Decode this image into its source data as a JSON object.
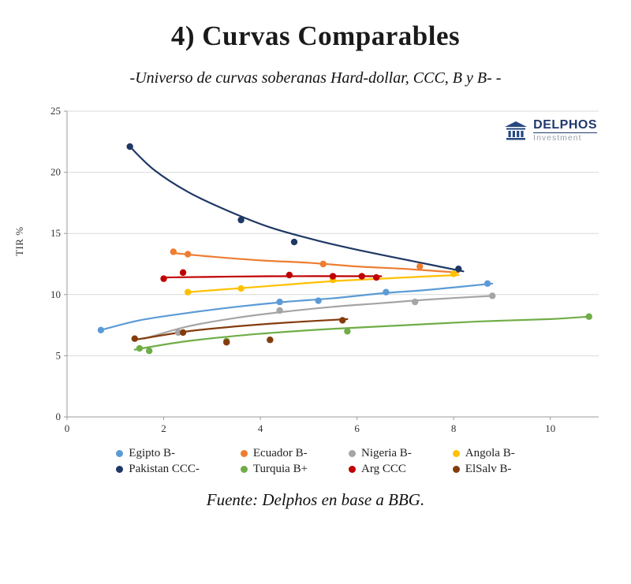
{
  "title": "4) Curvas Comparables",
  "subtitle": "-Universo de curvas soberanas Hard-dollar, CCC, B y B- -",
  "footer": "Fuente: Delphos en base a BBG.",
  "logo": {
    "name": "DELPHOS",
    "sub": "Investment",
    "color": "#1F3A6E"
  },
  "chart_data": {
    "type": "scatter",
    "title": "",
    "xlabel": "",
    "ylabel": "TIR %",
    "xlim": [
      0,
      11
    ],
    "ylim": [
      0,
      25
    ],
    "x_ticks": [
      0,
      2,
      4,
      6,
      8,
      10
    ],
    "y_ticks": [
      0,
      5,
      10,
      15,
      20,
      25
    ],
    "grid": "horizontal",
    "legend_position": "bottom",
    "series": [
      {
        "name": "Egipto B-",
        "color": "#5B9BD5",
        "points": [
          [
            0.7,
            7.1
          ],
          [
            4.4,
            9.4
          ],
          [
            5.2,
            9.5
          ],
          [
            6.6,
            10.2
          ],
          [
            8.7,
            10.9
          ]
        ],
        "curve": [
          [
            0.7,
            7.1
          ],
          [
            1.5,
            7.9
          ],
          [
            2.5,
            8.5
          ],
          [
            3.5,
            9.0
          ],
          [
            4.5,
            9.4
          ],
          [
            5.5,
            9.7
          ],
          [
            6.5,
            10.1
          ],
          [
            7.5,
            10.4
          ],
          [
            8.8,
            10.9
          ]
        ]
      },
      {
        "name": "Ecuador B-",
        "color": "#ED7D31",
        "points": [
          [
            2.2,
            13.5
          ],
          [
            2.5,
            13.3
          ],
          [
            5.3,
            12.5
          ],
          [
            7.3,
            12.3
          ]
        ],
        "curve": [
          [
            2.2,
            13.4
          ],
          [
            3.0,
            13.1
          ],
          [
            4.0,
            12.8
          ],
          [
            5.0,
            12.6
          ],
          [
            6.0,
            12.3
          ],
          [
            7.0,
            12.1
          ],
          [
            8.1,
            11.8
          ]
        ]
      },
      {
        "name": "Nigeria B-",
        "color": "#A5A5A5",
        "points": [
          [
            2.3,
            6.9
          ],
          [
            4.4,
            8.7
          ],
          [
            7.2,
            9.4
          ],
          [
            8.8,
            9.9
          ]
        ],
        "curve": [
          [
            1.6,
            6.4
          ],
          [
            2.5,
            7.4
          ],
          [
            3.5,
            8.1
          ],
          [
            4.5,
            8.6
          ],
          [
            5.5,
            9.0
          ],
          [
            6.5,
            9.3
          ],
          [
            7.5,
            9.6
          ],
          [
            8.8,
            9.9
          ]
        ]
      },
      {
        "name": "Angola B-",
        "color": "#FFC000",
        "points": [
          [
            2.5,
            10.2
          ],
          [
            3.6,
            10.5
          ],
          [
            5.5,
            11.2
          ],
          [
            8.0,
            11.7
          ]
        ],
        "curve": [
          [
            2.5,
            10.2
          ],
          [
            3.5,
            10.5
          ],
          [
            4.5,
            10.8
          ],
          [
            5.5,
            11.1
          ],
          [
            6.5,
            11.3
          ],
          [
            7.5,
            11.5
          ],
          [
            8.1,
            11.6
          ]
        ]
      },
      {
        "name": "Pakistan CCC-",
        "color": "#1F3864",
        "points": [
          [
            1.3,
            22.1
          ],
          [
            3.6,
            16.1
          ],
          [
            4.7,
            14.3
          ],
          [
            8.1,
            12.1
          ]
        ],
        "curve": [
          [
            1.3,
            22.1
          ],
          [
            1.8,
            20.2
          ],
          [
            2.5,
            18.4
          ],
          [
            3.3,
            16.9
          ],
          [
            4.2,
            15.5
          ],
          [
            5.2,
            14.4
          ],
          [
            6.2,
            13.5
          ],
          [
            7.2,
            12.7
          ],
          [
            8.2,
            11.9
          ]
        ]
      },
      {
        "name": "Turquia B+",
        "color": "#70AD47",
        "points": [
          [
            1.5,
            5.6
          ],
          [
            1.7,
            5.4
          ],
          [
            3.3,
            6.2
          ],
          [
            5.8,
            7.0
          ],
          [
            10.8,
            8.2
          ]
        ],
        "curve": [
          [
            1.4,
            5.5
          ],
          [
            2.5,
            6.2
          ],
          [
            4.0,
            6.8
          ],
          [
            5.5,
            7.2
          ],
          [
            7.0,
            7.5
          ],
          [
            8.5,
            7.8
          ],
          [
            10.0,
            8.0
          ],
          [
            10.8,
            8.2
          ]
        ]
      },
      {
        "name": "Arg CCC",
        "color": "#C00000",
        "points": [
          [
            2.0,
            11.3
          ],
          [
            2.4,
            11.8
          ],
          [
            4.6,
            11.6
          ],
          [
            5.5,
            11.5
          ],
          [
            6.1,
            11.5
          ],
          [
            6.4,
            11.4
          ]
        ],
        "curve": [
          [
            2.0,
            11.4
          ],
          [
            4.2,
            11.5
          ],
          [
            6.5,
            11.5
          ]
        ]
      },
      {
        "name": "ElSalv B-",
        "color": "#843C0C",
        "points": [
          [
            1.4,
            6.4
          ],
          [
            2.4,
            6.9
          ],
          [
            3.3,
            6.1
          ],
          [
            4.2,
            6.3
          ],
          [
            5.7,
            7.9
          ]
        ],
        "curve": [
          [
            1.4,
            6.3
          ],
          [
            2.5,
            7.0
          ],
          [
            3.5,
            7.4
          ],
          [
            4.5,
            7.7
          ],
          [
            5.8,
            8.0
          ]
        ]
      }
    ]
  }
}
